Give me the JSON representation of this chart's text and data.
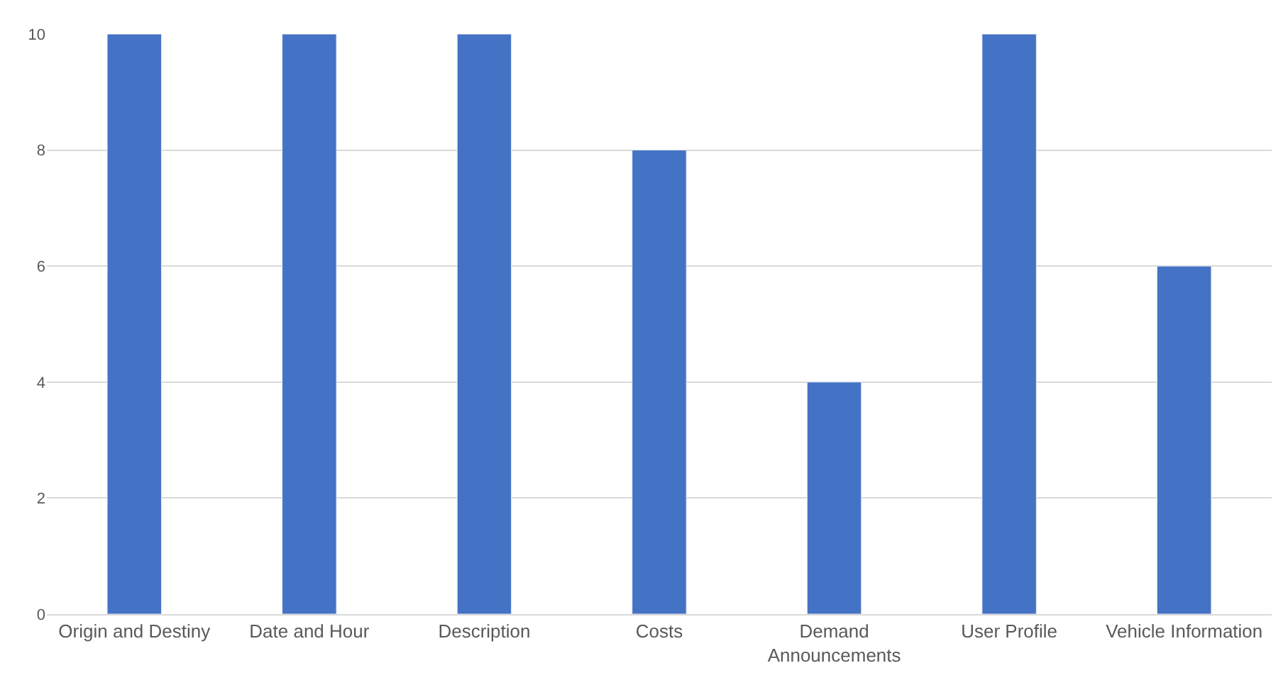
{
  "chart_data": {
    "type": "bar",
    "categories": [
      "Origin and Destiny",
      "Date and Hour",
      "Description",
      "Costs",
      "Demand Announcements",
      "User Profile",
      "Vehicle Information"
    ],
    "values": [
      10,
      10,
      10,
      8,
      4,
      10,
      6
    ],
    "color": "#4472c4",
    "ylim": [
      0,
      10
    ],
    "yticks": [
      0,
      2,
      4,
      6,
      8,
      10
    ],
    "grid": "y",
    "legend": false
  }
}
